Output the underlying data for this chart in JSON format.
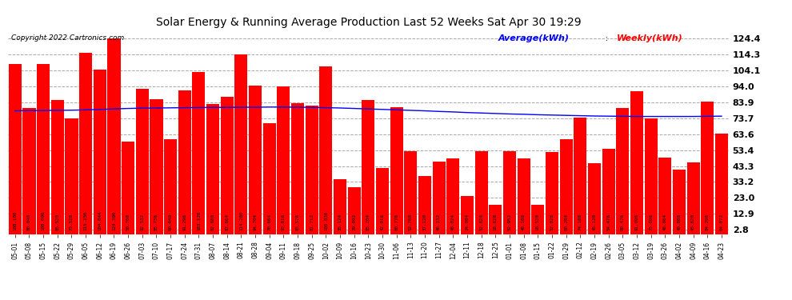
{
  "title": "Solar Energy & Running Average Production Last 52 Weeks Sat Apr 30 19:29",
  "copyright": "Copyright 2022 Cartronics.com",
  "legend_avg": "Average(kWh)",
  "legend_weekly": "Weekly(kWh)",
  "bar_color": "#ff0000",
  "avg_line_color": "#0000ff",
  "background_color": "#ffffff",
  "grid_color": "#aaaaaa",
  "yticks": [
    2.8,
    12.9,
    23.0,
    33.2,
    43.3,
    53.4,
    63.6,
    73.7,
    83.9,
    94.0,
    104.1,
    114.3,
    124.4
  ],
  "categories": [
    "05-01",
    "05-08",
    "05-15",
    "05-22",
    "05-29",
    "06-05",
    "06-12",
    "06-19",
    "06-26",
    "07-03",
    "07-10",
    "07-17",
    "07-24",
    "07-31",
    "08-07",
    "08-14",
    "08-21",
    "08-28",
    "09-04",
    "09-11",
    "09-18",
    "09-25",
    "10-02",
    "10-09",
    "10-16",
    "10-23",
    "10-30",
    "11-06",
    "11-13",
    "11-20",
    "11-27",
    "12-04",
    "12-11",
    "12-18",
    "12-25",
    "01-01",
    "01-08",
    "01-15",
    "01-22",
    "01-29",
    "02-12",
    "02-19",
    "02-26",
    "03-05",
    "03-12",
    "03-19",
    "03-26",
    "04-02",
    "04-09",
    "04-16",
    "04-23"
  ],
  "weekly_values": [
    108.108,
    80.04,
    108.096,
    85.52,
    73.52,
    115.256,
    104.844,
    124.396,
    58.708,
    92.532,
    85.736,
    60.64,
    91.296,
    103.128,
    82.88,
    87.664,
    114.28,
    94.704,
    70.664,
    93.816,
    83.576,
    81.712,
    106.836,
    35.124,
    29.892,
    85.204,
    42.016,
    80.776,
    52.76,
    37.12,
    46.132,
    48.024,
    24.084,
    52.828,
    18.828,
    52.952,
    48.188,
    18.528,
    52.028,
    60.284,
    74.188,
    45.12,
    54.476,
    80.476,
    91.096,
    73.696,
    48.864,
    40.888,
    45.82,
    84.296,
    64.072
  ],
  "avg_values": [
    78.5,
    78.6,
    78.7,
    78.8,
    78.9,
    79.1,
    79.4,
    79.7,
    80.0,
    80.2,
    80.3,
    80.4,
    80.5,
    80.6,
    80.7,
    80.7,
    80.8,
    80.8,
    80.9,
    80.9,
    80.8,
    80.7,
    80.5,
    80.3,
    80.0,
    79.7,
    79.4,
    79.1,
    78.8,
    78.5,
    78.1,
    77.8,
    77.4,
    77.1,
    76.8,
    76.5,
    76.3,
    76.0,
    75.8,
    75.6,
    75.4,
    75.2,
    75.1,
    75.0,
    74.9,
    74.9,
    74.9,
    74.9,
    74.9,
    75.0,
    75.1
  ]
}
